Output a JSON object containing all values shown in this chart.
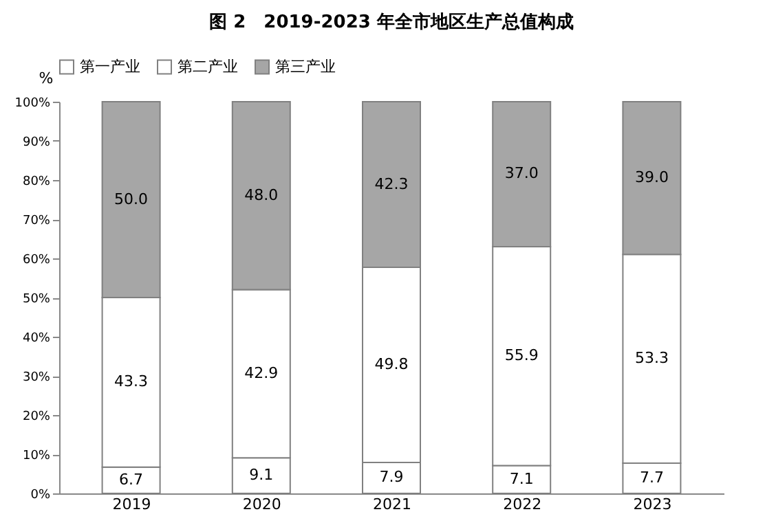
{
  "chart_data": {
    "type": "bar",
    "stacked": true,
    "title": "图 2　2019-2023 年全市地区生产总值构成",
    "ylabel": "%",
    "categories": [
      "2019",
      "2020",
      "2021",
      "2022",
      "2023"
    ],
    "series": [
      {
        "name": "第一产业",
        "color": "#ffffff",
        "values": [
          6.7,
          9.1,
          7.9,
          7.1,
          7.7
        ],
        "value_labels": [
          "6.7",
          "9.1",
          "7.9",
          "7.1",
          "7.7"
        ]
      },
      {
        "name": "第二产业",
        "color": "#ffffff",
        "values": [
          43.3,
          42.9,
          49.8,
          55.9,
          53.3
        ],
        "value_labels": [
          "43.3",
          "42.9",
          "49.8",
          "55.9",
          "53.3"
        ]
      },
      {
        "name": "第三产业",
        "color": "#a6a6a6",
        "values": [
          50.0,
          48.0,
          42.3,
          37.0,
          39.0
        ],
        "value_labels": [
          "50.0",
          "48.0",
          "42.3",
          "37.0",
          "39.0"
        ]
      }
    ],
    "ylim": [
      0,
      100
    ],
    "yticks": [
      {
        "value": 0,
        "label": "0%"
      },
      {
        "value": 10,
        "label": "10%"
      },
      {
        "value": 20,
        "label": "20%"
      },
      {
        "value": 30,
        "label": "30%"
      },
      {
        "value": 40,
        "label": "40%"
      },
      {
        "value": 50,
        "label": "50%"
      },
      {
        "value": 60,
        "label": "60%"
      },
      {
        "value": 70,
        "label": "70%"
      },
      {
        "value": 80,
        "label": "80%"
      },
      {
        "value": 90,
        "label": "90%"
      },
      {
        "value": 100,
        "label": "100%"
      }
    ],
    "grid": false,
    "legend": "top"
  }
}
